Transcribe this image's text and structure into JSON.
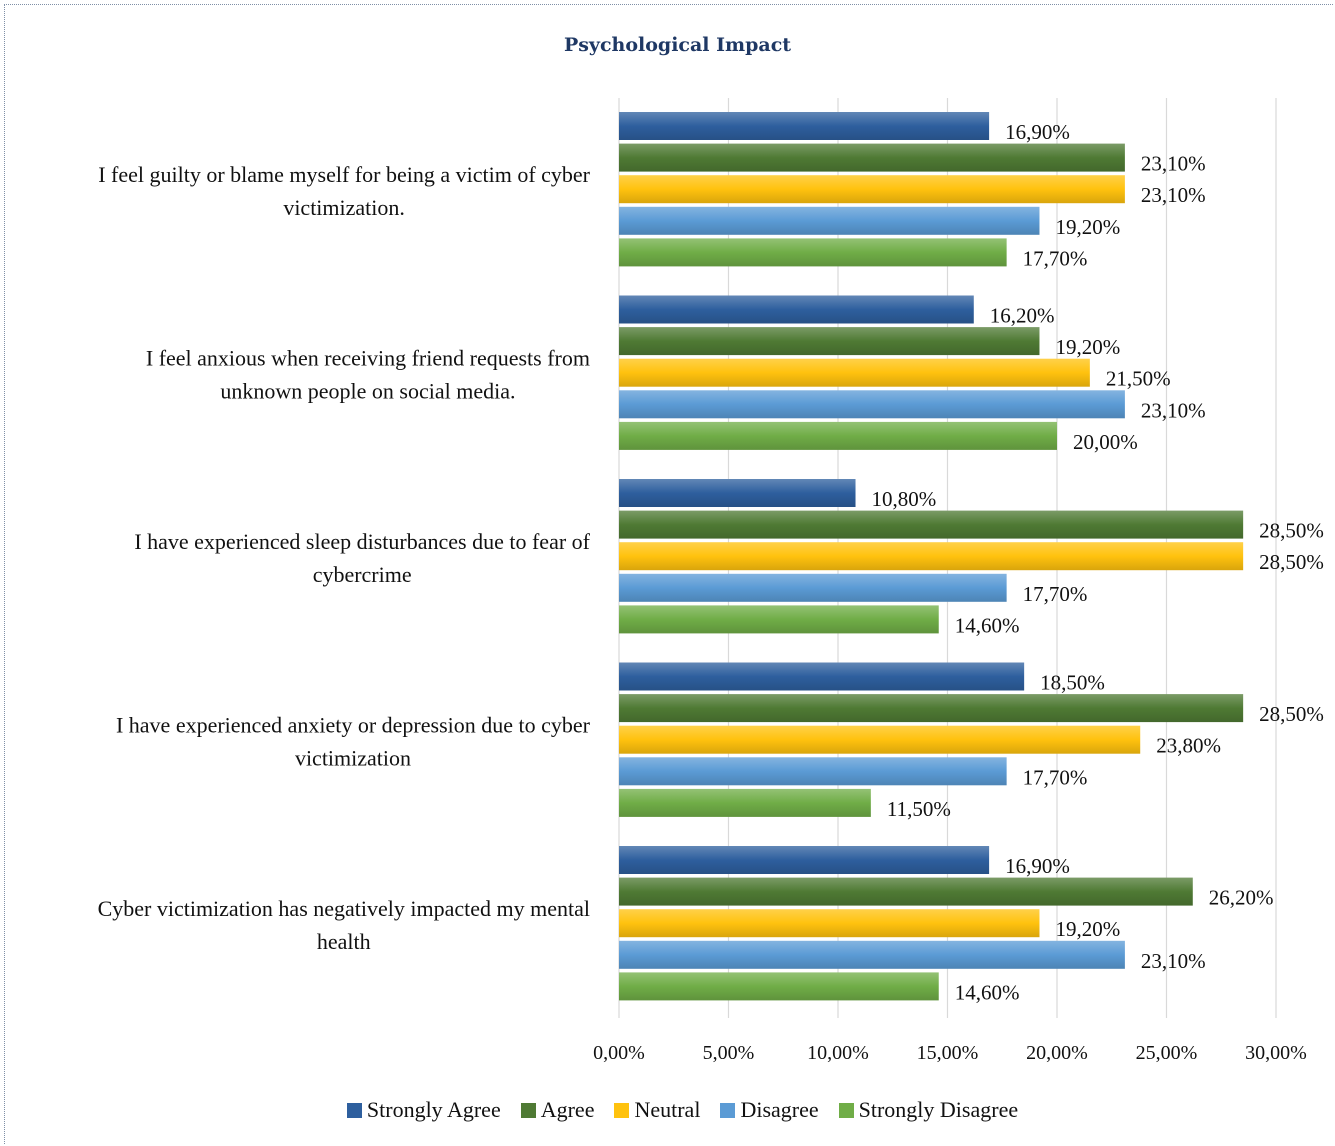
{
  "chart_data": {
    "type": "bar",
    "orientation": "horizontal",
    "title": "Psychological Impact",
    "categories": [
      "I feel guilty or blame myself for being a victim of cyber victimization.",
      "I feel anxious when receiving friend requests from unknown people on social media.",
      "I have experienced sleep disturbances due to fear of cybercrime",
      "I have experienced anxiety or depression due to cyber victimization",
      "Cyber victimization has negatively impacted my mental health"
    ],
    "category_lines": [
      [
        "I feel guilty or blame myself for being a victim of cyber",
        "victimization."
      ],
      [
        "I feel anxious when receiving friend requests from",
        "unknown people on social media."
      ],
      [
        "I have experienced sleep disturbances due to fear of",
        "cybercrime"
      ],
      [
        "I have experienced anxiety or depression due to cyber",
        "victimization"
      ],
      [
        "Cyber victimization has negatively impacted my mental",
        "health"
      ]
    ],
    "series": [
      {
        "name": "Strongly Agree",
        "color": "#2e5f9e",
        "values": [
          16.9,
          16.2,
          10.8,
          18.5,
          16.9
        ],
        "labels": [
          "16,90%",
          "16,20%",
          "10,80%",
          "18,50%",
          "16,90%"
        ]
      },
      {
        "name": "Agree",
        "color": "#4f7a34",
        "values": [
          23.1,
          19.2,
          28.5,
          28.5,
          26.2
        ],
        "labels": [
          "23,10%",
          "19,20%",
          "28,50%",
          "28,50%",
          "26,20%"
        ]
      },
      {
        "name": "Neutral",
        "color": "#ffc20e",
        "values": [
          23.1,
          21.5,
          28.5,
          23.8,
          19.2
        ],
        "labels": [
          "23,10%",
          "21,50%",
          "28,50%",
          "23,80%",
          "19,20%"
        ]
      },
      {
        "name": "Disagree",
        "color": "#5b9bd5",
        "values": [
          19.2,
          23.1,
          17.7,
          17.7,
          23.1
        ],
        "labels": [
          "19,20%",
          "23,10%",
          "17,70%",
          "17,70%",
          "23,10%"
        ]
      },
      {
        "name": "Strongly Disagree",
        "color": "#70ad47",
        "values": [
          17.7,
          20.0,
          14.6,
          11.5,
          14.6
        ],
        "labels": [
          "17,70%",
          "20,00%",
          "14,60%",
          "11,50%",
          "14,60%"
        ]
      }
    ],
    "xlim": [
      0,
      30
    ],
    "xticks": [
      0,
      5,
      10,
      15,
      20,
      25,
      30
    ],
    "xtick_labels": [
      "0,00%",
      "5,00%",
      "10,00%",
      "15,00%",
      "20,00%",
      "25,00%",
      "30,00%"
    ],
    "grid": "vertical",
    "legend": "bottom"
  }
}
